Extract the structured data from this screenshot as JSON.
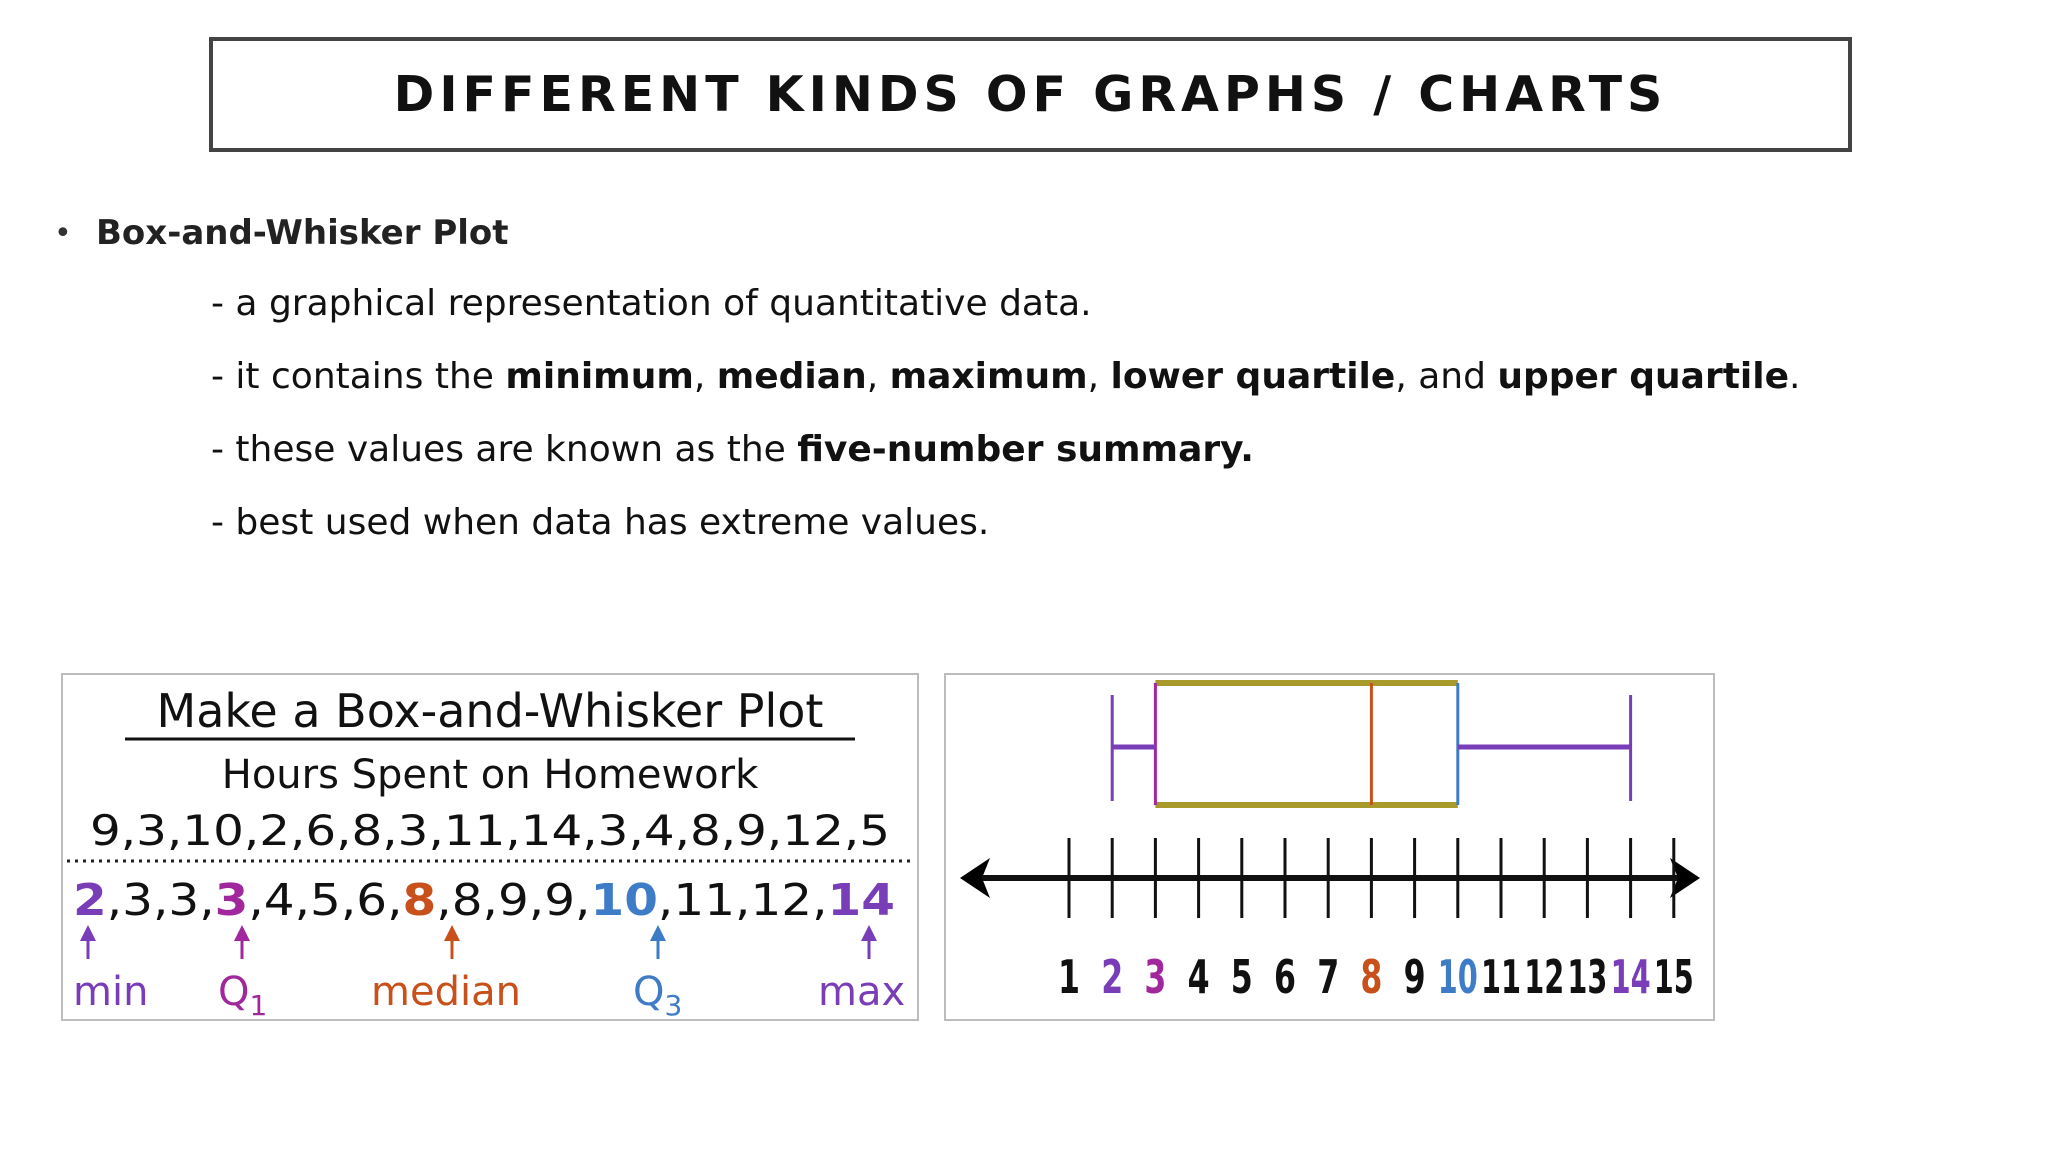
{
  "slide": {
    "title": "DIFFERENT KINDS OF GRAPHS / CHARTS",
    "bullet": "Box-and-Whisker Plot",
    "lines": {
      "l1": "- a graphical representation of quantitative data.",
      "l2_prefix": "- it contains the ",
      "l2_minimum": "minimum",
      "l2_sep1": ", ",
      "l2_median": "median",
      "l2_sep2": ", ",
      "l2_maximum": "maximum",
      "l2_sep3": ", ",
      "l2_lower": "lower quartile",
      "l2_and": ", and ",
      "l2_upper": "upper quartile",
      "l2_end": ".",
      "l3_prefix": "- these values are known as the ",
      "l3_bold": "five-number summary.",
      "l4": "- best used when data has extreme values."
    }
  },
  "worksheet": {
    "title": "Make a Box-and-Whisker Plot",
    "subtitle": "Hours Spent on Homework",
    "raw_data": "9,3,10,2,6,8,3,11,14,3,4,8,9,12,5",
    "sorted": {
      "min": "2",
      "seg1": ",3,3,",
      "q1": "3",
      "seg2": ",4,5,6,",
      "median": "8",
      "seg3": ",8,9,9,",
      "q3": "10",
      "seg4": ",11,12,",
      "max": "14"
    },
    "labels": {
      "min": "min",
      "q1": "Q",
      "q1_sub": "1",
      "median": "median",
      "q3": "Q",
      "q3_sub": "3",
      "max": "max"
    }
  },
  "colors": {
    "min": "#7a3db8",
    "q1": "#a0279c",
    "median": "#c8501a",
    "q3": "#3f7cc8",
    "max": "#7a3db8",
    "box_edge": "#a89a2a",
    "title": "#111111"
  },
  "chart_data": {
    "type": "box",
    "min": 2,
    "q1": 3,
    "median": 8,
    "q3": 10,
    "max": 14,
    "axis": {
      "ticks": [
        "1",
        "2",
        "3",
        "4",
        "5",
        "6",
        "7",
        "8",
        "9",
        "10",
        "11",
        "12",
        "13",
        "14",
        "15"
      ],
      "xlim": [
        1,
        15
      ]
    }
  }
}
